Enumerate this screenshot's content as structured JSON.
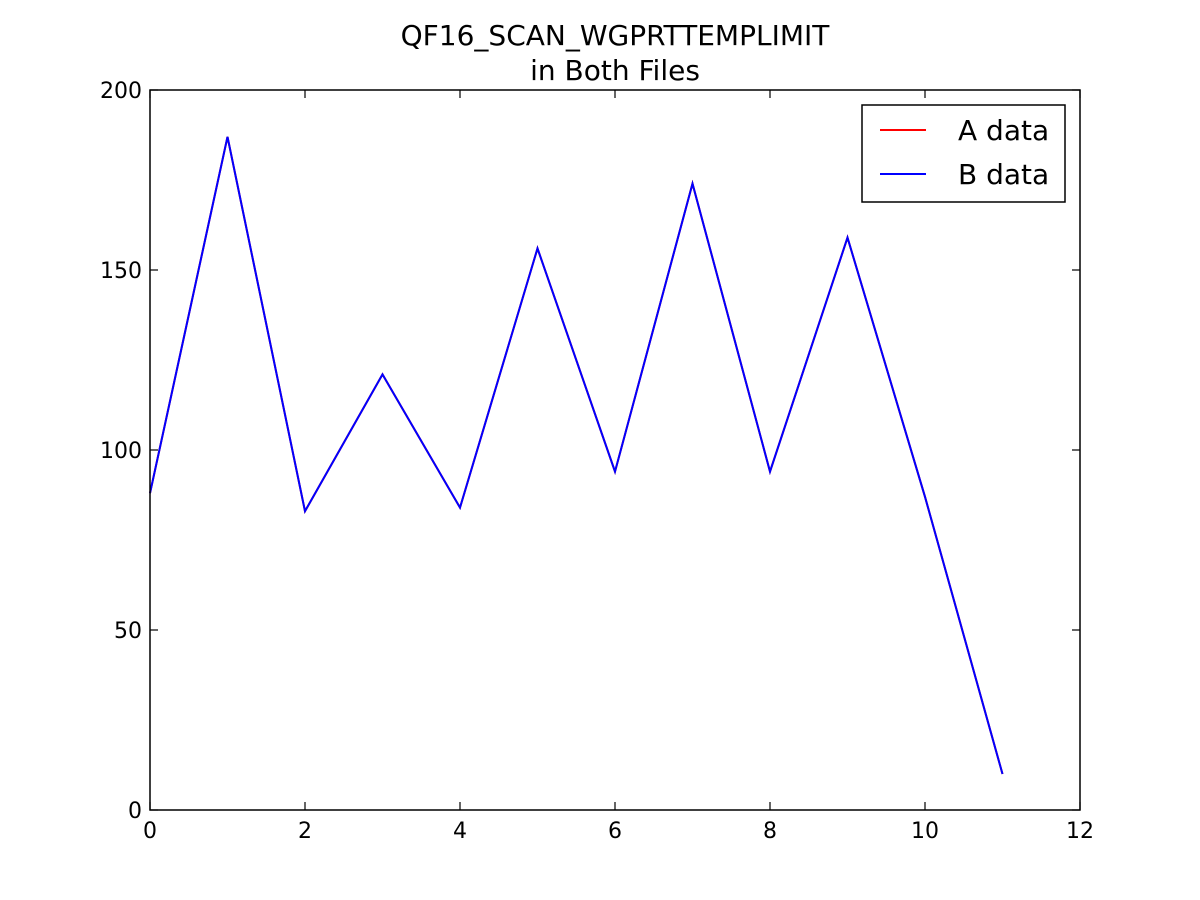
{
  "chart_data": {
    "type": "line",
    "title": "QF16_SCAN_WGPRTTEMPLIMIT",
    "subtitle": "in Both Files",
    "xlabel": "",
    "ylabel": "",
    "xlim": [
      0,
      12
    ],
    "ylim": [
      0,
      200
    ],
    "xticks": [
      0,
      2,
      4,
      6,
      8,
      10,
      12
    ],
    "yticks": [
      0,
      50,
      100,
      150,
      200
    ],
    "grid": false,
    "legend_position": "top-right",
    "series": [
      {
        "name": "A data",
        "color": "#ff0000",
        "x": [
          0,
          1,
          2,
          3,
          4,
          5,
          6,
          7,
          8,
          9,
          10,
          11
        ],
        "values": [
          88,
          187,
          83,
          121,
          84,
          156,
          94,
          174,
          94,
          159,
          87,
          10
        ]
      },
      {
        "name": "B data",
        "color": "#0000ff",
        "x": [
          0,
          1,
          2,
          3,
          4,
          5,
          6,
          7,
          8,
          9,
          10,
          11
        ],
        "values": [
          88,
          187,
          83,
          121,
          84,
          156,
          94,
          174,
          94,
          159,
          87,
          10
        ]
      }
    ]
  }
}
